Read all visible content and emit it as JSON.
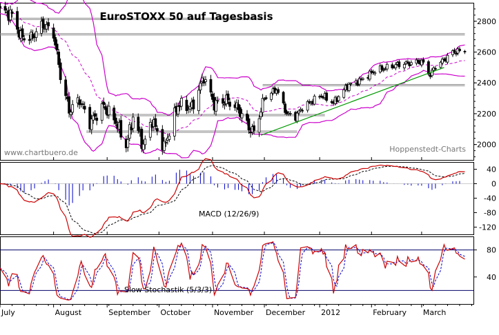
{
  "chart_data": [
    {
      "type": "candlestick",
      "title": "EuroSTOXX 50 auf Tagesbasis",
      "watermark_left": "www.chartbuero.de",
      "watermark_right": "Hoppenstedt-Charts",
      "ylim": [
        1900,
        2920
      ],
      "y_ticks": [
        "2000",
        "2200",
        "2400",
        "2600",
        "2800"
      ],
      "y_tick_values": [
        2000,
        2200,
        2400,
        2600,
        2800
      ],
      "horizontal_lines": [
        {
          "value": 2820,
          "x_start": "2011-07-08",
          "x_end": "2011-11-30"
        },
        {
          "value": 2720,
          "x_start": "2011-07-01",
          "x_end": "2012-03-26"
        },
        {
          "value": 2390,
          "x_start": "2011-11-30",
          "x_end": "2012-03-26"
        },
        {
          "value": 2195,
          "x_start": "2011-09-01",
          "x_end": "2012-01-05"
        },
        {
          "value": 2088,
          "x_start": "2011-08-20",
          "x_end": "2011-12-20"
        }
      ],
      "trendline": {
        "from": [
          "2011-11-29",
          2060
        ],
        "to": [
          "2012-03-14",
          2500
        ]
      },
      "bollinger_period_note": "",
      "colors": {
        "bollinger": "#cc00cc",
        "trendline": "#009900",
        "candle_up": "#ffffff",
        "candle_down": "#000000"
      }
    },
    {
      "type": "line",
      "label": "MACD (12/26/9)",
      "ylim": [
        -140,
        60
      ],
      "y_ticks": [
        "40",
        "0",
        "-40",
        "-80",
        "-120"
      ],
      "y_tick_values": [
        40,
        0,
        -40,
        -80,
        -120
      ],
      "series": [
        {
          "name": "MACD",
          "color": "#cc0000"
        },
        {
          "name": "Signal",
          "color": "#000000"
        },
        {
          "name": "Histogram",
          "color": "#0000cc"
        }
      ]
    },
    {
      "type": "line",
      "label": "Slow Stochastik (5/3/3)",
      "ylim": [
        0,
        100
      ],
      "y_ticks": [
        "80",
        "40"
      ],
      "y_tick_values": [
        80,
        40
      ],
      "levels": [
        80,
        20
      ],
      "series": [
        {
          "name": "%K",
          "color": "#cc0000"
        },
        {
          "name": "%D",
          "color": "#0000cc"
        }
      ]
    }
  ],
  "x_axis": {
    "start": "2011-07-01",
    "end": "2012-03-31",
    "labels": [
      "July",
      "August",
      "September",
      "October",
      "November",
      "December",
      "2012",
      "February",
      "March"
    ],
    "label_dates": [
      "2011-07-01",
      "2011-08-01",
      "2011-09-01",
      "2011-10-01",
      "2011-11-01",
      "2011-12-01",
      "2012-01-02",
      "2012-02-01",
      "2012-03-01"
    ]
  }
}
